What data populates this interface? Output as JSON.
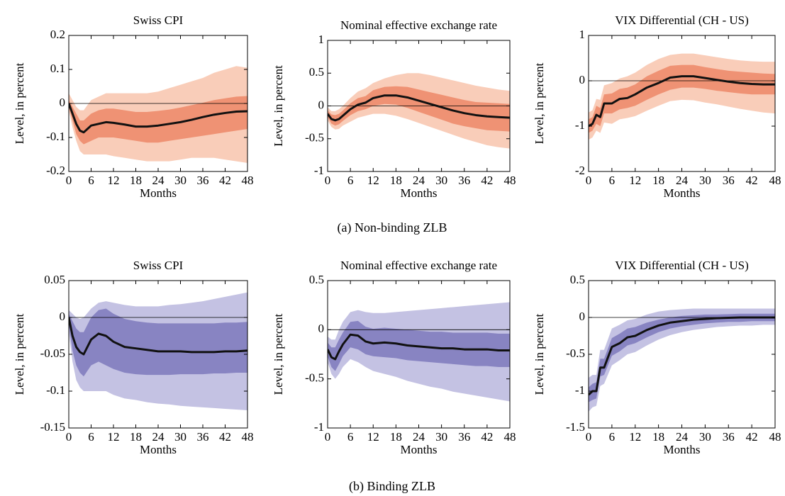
{
  "chart_data": [
    {
      "type": "line",
      "title": "Swiss CPI",
      "xlabel": "Months",
      "ylabel": "Level, in percent",
      "x": [
        0,
        1,
        2,
        3,
        4,
        6,
        8,
        10,
        12,
        15,
        18,
        21,
        24,
        27,
        30,
        33,
        36,
        39,
        42,
        45,
        48
      ],
      "xlim": [
        0,
        48
      ],
      "xticks": [
        0,
        6,
        12,
        18,
        24,
        30,
        36,
        42,
        48
      ],
      "ylim": [
        -0.2,
        0.2
      ],
      "yticks": [
        -0.2,
        -0.1,
        0,
        0.1,
        0.2
      ],
      "hlines": [
        0
      ],
      "bands": [
        {
          "color": "#f9cdb9",
          "lower": [
            -0.02,
            -0.07,
            -0.11,
            -0.14,
            -0.15,
            -0.15,
            -0.15,
            -0.15,
            -0.155,
            -0.16,
            -0.165,
            -0.17,
            -0.17,
            -0.17,
            -0.165,
            -0.16,
            -0.16,
            -0.16,
            -0.165,
            -0.17,
            -0.175
          ],
          "upper": [
            0.03,
            0.01,
            -0.01,
            -0.02,
            -0.02,
            0.01,
            0.02,
            0.03,
            0.03,
            0.03,
            0.03,
            0.03,
            0.035,
            0.045,
            0.055,
            0.065,
            0.075,
            0.09,
            0.1,
            0.11,
            0.105
          ]
        },
        {
          "color": "#ef9274",
          "lower": [
            -0.01,
            -0.05,
            -0.09,
            -0.11,
            -0.12,
            -0.11,
            -0.1,
            -0.1,
            -0.1,
            -0.105,
            -0.11,
            -0.115,
            -0.115,
            -0.11,
            -0.105,
            -0.1,
            -0.095,
            -0.09,
            -0.085,
            -0.08,
            -0.075
          ],
          "upper": [
            0.01,
            -0.01,
            -0.03,
            -0.05,
            -0.05,
            -0.03,
            -0.02,
            -0.015,
            -0.015,
            -0.02,
            -0.025,
            -0.025,
            -0.022,
            -0.018,
            -0.012,
            -0.005,
            0.002,
            0.01,
            0.015,
            0.02,
            0.022
          ]
        }
      ],
      "series": [
        {
          "color": "#111111",
          "values": [
            0,
            -0.03,
            -0.06,
            -0.08,
            -0.085,
            -0.065,
            -0.06,
            -0.055,
            -0.057,
            -0.062,
            -0.068,
            -0.068,
            -0.065,
            -0.06,
            -0.055,
            -0.048,
            -0.04,
            -0.033,
            -0.028,
            -0.024,
            -0.023
          ]
        }
      ]
    },
    {
      "type": "line",
      "title": "Nominal effective exchange rate",
      "xlabel": "Months",
      "ylabel": "Level, in percent",
      "x": [
        0,
        1,
        2,
        3,
        4,
        6,
        8,
        10,
        12,
        15,
        18,
        21,
        24,
        27,
        30,
        33,
        36,
        39,
        42,
        45,
        48
      ],
      "xlim": [
        0,
        48
      ],
      "xticks": [
        0,
        6,
        12,
        18,
        24,
        30,
        36,
        42,
        48
      ],
      "ylim": [
        -1,
        1
      ],
      "yticks": [
        -1,
        -0.5,
        0,
        0.5,
        1
      ],
      "hlines": [
        0
      ],
      "bands": [
        {
          "color": "#f9cdb9",
          "lower": [
            -0.22,
            -0.32,
            -0.36,
            -0.35,
            -0.3,
            -0.24,
            -0.18,
            -0.15,
            -0.12,
            -0.12,
            -0.15,
            -0.2,
            -0.26,
            -0.32,
            -0.38,
            -0.44,
            -0.5,
            -0.55,
            -0.6,
            -0.63,
            -0.65
          ],
          "upper": [
            -0.02,
            -0.08,
            -0.08,
            -0.05,
            0,
            0.12,
            0.22,
            0.27,
            0.35,
            0.42,
            0.47,
            0.5,
            0.5,
            0.47,
            0.43,
            0.39,
            0.35,
            0.31,
            0.28,
            0.25,
            0.23
          ]
        },
        {
          "color": "#ef9274",
          "lower": [
            -0.17,
            -0.27,
            -0.3,
            -0.28,
            -0.23,
            -0.14,
            -0.08,
            -0.05,
            0,
            0.03,
            0.02,
            -0.03,
            -0.09,
            -0.15,
            -0.21,
            -0.27,
            -0.31,
            -0.34,
            -0.37,
            -0.38,
            -0.39
          ],
          "upper": [
            -0.07,
            -0.13,
            -0.14,
            -0.12,
            -0.07,
            0.04,
            0.12,
            0.15,
            0.24,
            0.29,
            0.3,
            0.29,
            0.25,
            0.21,
            0.17,
            0.13,
            0.09,
            0.06,
            0.05,
            0.04,
            0.03
          ]
        }
      ],
      "series": [
        {
          "color": "#111111",
          "values": [
            -0.12,
            -0.2,
            -0.22,
            -0.2,
            -0.15,
            -0.05,
            0.02,
            0.05,
            0.12,
            0.16,
            0.16,
            0.13,
            0.08,
            0.03,
            -0.02,
            -0.07,
            -0.11,
            -0.14,
            -0.16,
            -0.17,
            -0.18
          ]
        }
      ]
    },
    {
      "type": "line",
      "title": "VIX Differential (CH - US)",
      "xlabel": "Months",
      "ylabel": "Level, in percent",
      "x": [
        0,
        1,
        2,
        3,
        4,
        6,
        8,
        10,
        12,
        15,
        18,
        21,
        24,
        27,
        30,
        33,
        36,
        39,
        42,
        45,
        48
      ],
      "xlim": [
        0,
        48
      ],
      "xticks": [
        0,
        6,
        12,
        18,
        24,
        30,
        36,
        42,
        48
      ],
      "ylim": [
        -2,
        1
      ],
      "yticks": [
        -2,
        -1,
        0,
        1
      ],
      "hlines": [
        0
      ],
      "bands": [
        {
          "color": "#f9cdb9",
          "lower": [
            -1.3,
            -1.25,
            -1.1,
            -1.15,
            -0.92,
            -0.95,
            -0.85,
            -0.82,
            -0.78,
            -0.66,
            -0.55,
            -0.45,
            -0.42,
            -0.43,
            -0.48,
            -0.52,
            -0.57,
            -0.62,
            -0.66,
            -0.7,
            -0.72
          ],
          "upper": [
            -0.7,
            -0.65,
            -0.4,
            -0.42,
            -0.1,
            -0.05,
            0.05,
            0.1,
            0.18,
            0.35,
            0.48,
            0.57,
            0.6,
            0.6,
            0.56,
            0.52,
            0.48,
            0.45,
            0.43,
            0.42,
            0.42
          ]
        },
        {
          "color": "#ef9274",
          "lower": [
            -1.15,
            -1.1,
            -0.95,
            -1,
            -0.72,
            -0.72,
            -0.63,
            -0.6,
            -0.55,
            -0.42,
            -0.3,
            -0.2,
            -0.15,
            -0.15,
            -0.18,
            -0.22,
            -0.25,
            -0.28,
            -0.3,
            -0.3,
            -0.3
          ],
          "upper": [
            -0.85,
            -0.8,
            -0.55,
            -0.6,
            -0.3,
            -0.28,
            -0.18,
            -0.15,
            -0.08,
            0.1,
            0.22,
            0.33,
            0.35,
            0.35,
            0.3,
            0.26,
            0.22,
            0.2,
            0.18,
            0.16,
            0.15
          ]
        }
      ],
      "series": [
        {
          "color": "#111111",
          "values": [
            -1,
            -0.95,
            -0.75,
            -0.8,
            -0.5,
            -0.5,
            -0.4,
            -0.38,
            -0.3,
            -0.15,
            -0.05,
            0.07,
            0.1,
            0.1,
            0.06,
            0.02,
            -0.02,
            -0.05,
            -0.07,
            -0.08,
            -0.08
          ]
        }
      ]
    },
    {
      "type": "line",
      "title": "Swiss CPI",
      "xlabel": "Months",
      "ylabel": "Level, in percent",
      "x": [
        0,
        1,
        2,
        3,
        4,
        6,
        8,
        10,
        12,
        15,
        18,
        21,
        24,
        27,
        30,
        33,
        36,
        39,
        42,
        45,
        48
      ],
      "xlim": [
        0,
        48
      ],
      "xticks": [
        0,
        6,
        12,
        18,
        24,
        30,
        36,
        42,
        48
      ],
      "ylim": [
        -0.15,
        0.05
      ],
      "yticks": [
        -0.15,
        -0.1,
        -0.05,
        0,
        0.05
      ],
      "hlines": [
        0
      ],
      "bands": [
        {
          "color": "#c4c2e3",
          "lower": [
            -0.02,
            -0.06,
            -0.085,
            -0.095,
            -0.1,
            -0.1,
            -0.1,
            -0.1,
            -0.105,
            -0.11,
            -0.112,
            -0.115,
            -0.117,
            -0.118,
            -0.12,
            -0.121,
            -0.122,
            -0.123,
            -0.124,
            -0.125,
            -0.126
          ],
          "upper": [
            0.01,
            0.005,
            0,
            -0.002,
            0,
            0.012,
            0.02,
            0.022,
            0.02,
            0.017,
            0.015,
            0.015,
            0.015,
            0.017,
            0.018,
            0.02,
            0.022,
            0.025,
            0.028,
            0.031,
            0.034
          ]
        },
        {
          "color": "#8884c2",
          "lower": [
            -0.01,
            -0.045,
            -0.065,
            -0.075,
            -0.08,
            -0.065,
            -0.06,
            -0.065,
            -0.07,
            -0.075,
            -0.077,
            -0.078,
            -0.078,
            -0.078,
            -0.077,
            -0.077,
            -0.077,
            -0.076,
            -0.076,
            -0.075,
            -0.075
          ],
          "upper": [
            0.005,
            -0.005,
            -0.015,
            -0.02,
            -0.02,
            0,
            0.01,
            0.012,
            0.005,
            -0.002,
            -0.005,
            -0.007,
            -0.008,
            -0.008,
            -0.008,
            -0.008,
            -0.008,
            -0.008,
            -0.007,
            -0.007,
            -0.006
          ]
        }
      ],
      "series": [
        {
          "color": "#111111",
          "values": [
            0,
            -0.025,
            -0.04,
            -0.047,
            -0.05,
            -0.03,
            -0.022,
            -0.025,
            -0.033,
            -0.04,
            -0.042,
            -0.044,
            -0.046,
            -0.046,
            -0.046,
            -0.047,
            -0.047,
            -0.047,
            -0.046,
            -0.046,
            -0.045
          ]
        }
      ]
    },
    {
      "type": "line",
      "title": "Nominal effective exchange rate",
      "xlabel": "Months",
      "ylabel": "Level, in percent",
      "x": [
        0,
        1,
        2,
        3,
        4,
        6,
        8,
        10,
        12,
        15,
        18,
        21,
        24,
        27,
        30,
        33,
        36,
        39,
        42,
        45,
        48
      ],
      "xlim": [
        0,
        48
      ],
      "xticks": [
        0,
        6,
        12,
        18,
        24,
        30,
        36,
        42,
        48
      ],
      "ylim": [
        -1,
        0.5
      ],
      "yticks": [
        -1,
        -0.5,
        0,
        0.5
      ],
      "hlines": [
        0
      ],
      "bands": [
        {
          "color": "#c4c2e3",
          "lower": [
            -0.33,
            -0.45,
            -0.5,
            -0.45,
            -0.38,
            -0.3,
            -0.33,
            -0.38,
            -0.42,
            -0.45,
            -0.48,
            -0.52,
            -0.55,
            -0.58,
            -0.6,
            -0.63,
            -0.65,
            -0.67,
            -0.69,
            -0.71,
            -0.73
          ],
          "upper": [
            -0.07,
            -0.1,
            -0.1,
            0,
            0.08,
            0.18,
            0.2,
            0.18,
            0.17,
            0.17,
            0.18,
            0.19,
            0.2,
            0.21,
            0.22,
            0.23,
            0.24,
            0.25,
            0.26,
            0.27,
            0.28
          ]
        },
        {
          "color": "#8884c2",
          "lower": [
            -0.27,
            -0.38,
            -0.42,
            -0.35,
            -0.27,
            -0.18,
            -0.2,
            -0.25,
            -0.27,
            -0.28,
            -0.29,
            -0.31,
            -0.32,
            -0.33,
            -0.34,
            -0.35,
            -0.36,
            -0.37,
            -0.37,
            -0.38,
            -0.38
          ],
          "upper": [
            -0.13,
            -0.18,
            -0.18,
            -0.1,
            -0.03,
            0.08,
            0.09,
            0.03,
            0.01,
            0.02,
            0.01,
            0,
            -0.01,
            -0.02,
            -0.02,
            -0.03,
            -0.03,
            -0.03,
            -0.03,
            -0.04,
            -0.04
          ]
        }
      ],
      "series": [
        {
          "color": "#111111",
          "values": [
            -0.2,
            -0.28,
            -0.3,
            -0.22,
            -0.15,
            -0.05,
            -0.06,
            -0.12,
            -0.14,
            -0.13,
            -0.14,
            -0.16,
            -0.17,
            -0.18,
            -0.19,
            -0.19,
            -0.2,
            -0.2,
            -0.2,
            -0.21,
            -0.21
          ]
        }
      ]
    },
    {
      "type": "line",
      "title": "VIX Differential (CH - US)",
      "xlabel": "Months",
      "ylabel": "Level, in percent",
      "x": [
        0,
        1,
        2,
        3,
        4,
        6,
        8,
        10,
        12,
        15,
        18,
        21,
        24,
        27,
        30,
        33,
        36,
        39,
        42,
        45,
        48
      ],
      "xlim": [
        0,
        48
      ],
      "xticks": [
        0,
        6,
        12,
        18,
        24,
        30,
        36,
        42,
        48
      ],
      "ylim": [
        -1.5,
        0.5
      ],
      "yticks": [
        -1.5,
        -1,
        -0.5,
        0,
        0.5
      ],
      "hlines": [
        0
      ],
      "bands": [
        {
          "color": "#c4c2e3",
          "lower": [
            -1.28,
            -1.22,
            -1.2,
            -0.93,
            -0.9,
            -0.65,
            -0.58,
            -0.5,
            -0.47,
            -0.38,
            -0.3,
            -0.24,
            -0.2,
            -0.17,
            -0.15,
            -0.13,
            -0.12,
            -0.11,
            -0.11,
            -0.1,
            -0.1
          ],
          "upper": [
            -0.82,
            -0.78,
            -0.78,
            -0.44,
            -0.44,
            -0.15,
            -0.1,
            -0.04,
            -0.02,
            0.04,
            0.08,
            0.1,
            0.11,
            0.12,
            0.12,
            0.12,
            0.12,
            0.12,
            0.12,
            0.12,
            0.12
          ]
        },
        {
          "color": "#8884c2",
          "lower": [
            -1.15,
            -1.12,
            -1.1,
            -0.8,
            -0.78,
            -0.52,
            -0.46,
            -0.38,
            -0.35,
            -0.27,
            -0.2,
            -0.15,
            -0.12,
            -0.1,
            -0.08,
            -0.07,
            -0.06,
            -0.06,
            -0.05,
            -0.05,
            -0.05
          ],
          "upper": [
            -0.95,
            -0.9,
            -0.88,
            -0.56,
            -0.56,
            -0.28,
            -0.22,
            -0.15,
            -0.13,
            -0.07,
            -0.03,
            0,
            0.02,
            0.03,
            0.04,
            0.04,
            0.045,
            0.05,
            0.05,
            0.05,
            0.05
          ]
        }
      ],
      "series": [
        {
          "color": "#111111",
          "values": [
            -1.05,
            -1,
            -1,
            -0.68,
            -0.68,
            -0.4,
            -0.35,
            -0.27,
            -0.25,
            -0.17,
            -0.11,
            -0.07,
            -0.05,
            -0.03,
            -0.02,
            -0.01,
            -0.005,
            0,
            0,
            0,
            0
          ]
        }
      ]
    }
  ],
  "captions": [
    "(a) Non-binding ZLB",
    "(b) Binding ZLB"
  ]
}
